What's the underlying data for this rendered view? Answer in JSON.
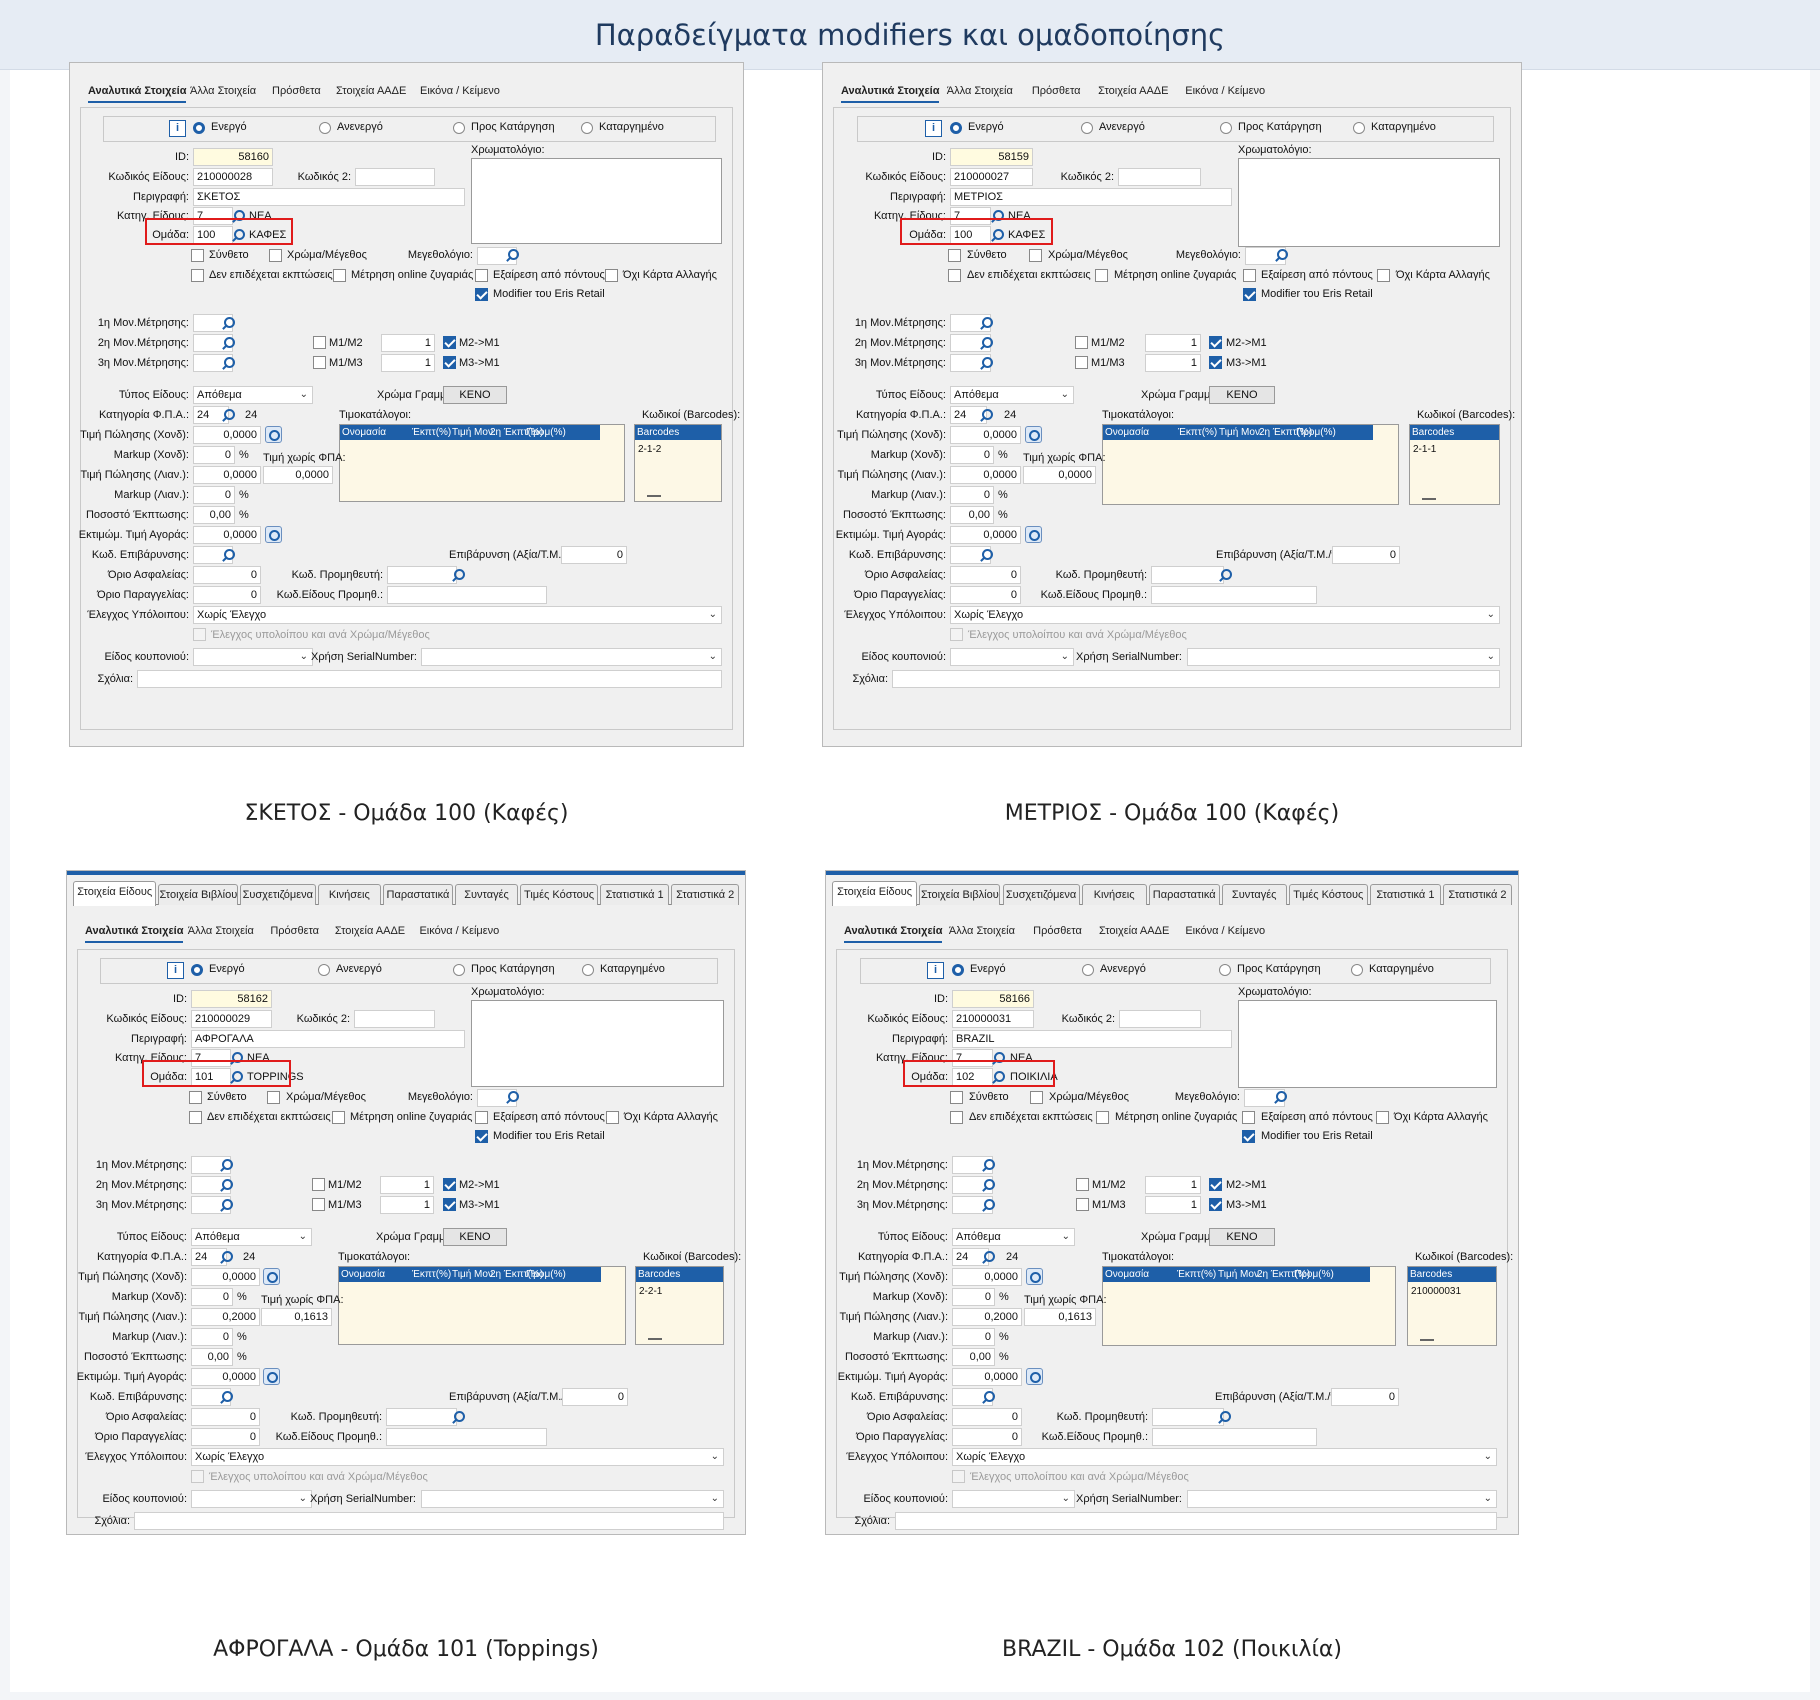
{
  "page_title": "Παραδείγματα modifiers και ομαδοποίησης",
  "ui": {
    "tabs_top": [
      "Στοιχεία Είδους",
      "Στοιχεία Βιβλίου",
      "Συσχετιζόμενα",
      "Κινήσεις",
      "Παραστατικά",
      "Συνταγές",
      "Τιμές Κόστους",
      "Στατιστικά 1",
      "Στατιστικά 2"
    ],
    "tabs_sub": [
      "Αναλυτικά Στοιχεία",
      "Άλλα Στοιχεία",
      "Πρόσθετα",
      "Στοιχεία ΑΑΔΕ",
      "Εικόνα / Κείμενο"
    ],
    "status": [
      "Ενεργό",
      "Ανενεργό",
      "Προς Κατάργηση",
      "Καταργημένο"
    ],
    "labels": {
      "id": "ID:",
      "code": "Κωδικός Είδους:",
      "code2": "Κωδικός 2:",
      "desc": "Περιγραφή:",
      "category": "Κατηγ. Είδους:",
      "group": "Ομάδα:",
      "color_catalog": "Χρωματολόγιο:",
      "composite": "Σύνθετο",
      "color_size": "Χρώμα/Μέγεθος",
      "size_catalog": "Μεγεθολόγιο:",
      "no_discount": "Δεν επιδέχεται εκπτώσεις",
      "scale": "Μέτρηση online ζυγαριάς",
      "points_excl": "Εξαίρεση από πόντους",
      "no_card": "Όχι Κάρτα Αλλαγής",
      "modifier": "Modifier του Eris Retail",
      "um1": "1η Μον.Μέτρησης:",
      "um2": "2η Μον.Μέτρησης:",
      "um3": "3η Μον.Μέτρησης:",
      "m1m2": "M1/M2",
      "m2m1": "M2->M1",
      "m1m3": "M1/M3",
      "m3m1": "M3->M1",
      "type": "Τύπος Είδους:",
      "line_color": "Χρώμα Γραμμής:",
      "vat_cat": "Κατηγορία Φ.Π.Α.:",
      "price_wh": "Τιμή Πώλησης (Χονδ):",
      "markup_wh": "Markup (Χονδ):",
      "price_novat": "Τιμή χωρίς ΦΠΑ:",
      "price_rt": "Τιμή Πώλησης (Λιαν.):",
      "markup_rt": "Markup (Λιαν.):",
      "discount_pct": "Ποσοστό Έκπτωσης:",
      "est_buy": "Εκτιμώμ. Τιμή Αγοράς:",
      "surcharge_code": "Κωδ. Επιβάρυνσης:",
      "surcharge": "Επιβάρυνση (Αξία/Τ.Μ./%):",
      "safety": "Όριο Ασφαλείας:",
      "supplier": "Κωδ. Προμηθευτή:",
      "reorder": "Όριο Παραγγελίας:",
      "supplier_item": "Κωδ.Είδους Προμηθ.:",
      "stock_check": "Έλεγχος Υπόλοιπου:",
      "stock_check_cs": "Έλεγχος υπολοίπου και ανά Χρώμα/Μέγεθος",
      "coupon": "Είδος κουπονιού:",
      "serial": "Χρήση SerialNumber:",
      "notes": "Σχόλια:",
      "pricelists": "Τιμοκατάλογοι:",
      "barcodes_title": "Κωδικοί (Barcodes):",
      "pl_cols": [
        "Ονομασία",
        "Έκπτ(%)",
        "Τιμή Μον.",
        "2η Έκπτ(%)",
        "Προμ(%)"
      ],
      "bc_col": "Barcodes"
    },
    "common": {
      "category_code": "7",
      "category_name": "ΝΕΑ",
      "qty_one": "1",
      "type_value": "Απόθεμα",
      "line_color_value": "ΚΕΝΟ",
      "vat_code": "24",
      "vat_value": "24",
      "percent": "%",
      "zero": "0",
      "zero_dec": "0,0000",
      "zero_pct": "0,00",
      "stock_value": "Χωρίς Έλεγχο"
    }
  },
  "panels": [
    {
      "caption": "ΣΚΕΤΟΣ - Ομάδα 100 (Καφές)",
      "id": "58160",
      "code": "210000028",
      "desc": "ΣΚΕΤΟΣ",
      "group_code": "100",
      "group_name": "ΚΑΦΕΣ",
      "price_rt": "0,0000",
      "price_novat": "0,0000",
      "barcode": "2-1-2"
    },
    {
      "caption": "ΜΕΤΡΙΟΣ - Ομάδα 100 (Καφές)",
      "id": "58159",
      "code": "210000027",
      "desc": "ΜΕΤΡΙΟΣ",
      "group_code": "100",
      "group_name": "ΚΑΦΕΣ",
      "price_rt": "0,0000",
      "price_novat": "0,0000",
      "barcode": "2-1-1"
    },
    {
      "caption": "ΑΦΡΟΓΑΛΑ - Ομάδα 101 (Toppings)",
      "id": "58162",
      "code": "210000029",
      "desc": "ΑΦΡΟΓΑΛΑ",
      "group_code": "101",
      "group_name": "TOPPINGS",
      "price_rt": "0,2000",
      "price_novat": "0,1613",
      "barcode": "2-2-1"
    },
    {
      "caption": "BRAZIL - Ομάδα 102 (Ποικιλία)",
      "id": "58166",
      "code": "210000031",
      "desc": "BRAZIL",
      "group_code": "102",
      "group_name": "ΠΟΙΚΙΛΙΑ",
      "price_rt": "0,2000",
      "price_novat": "0,1613",
      "barcode": "210000031"
    }
  ]
}
